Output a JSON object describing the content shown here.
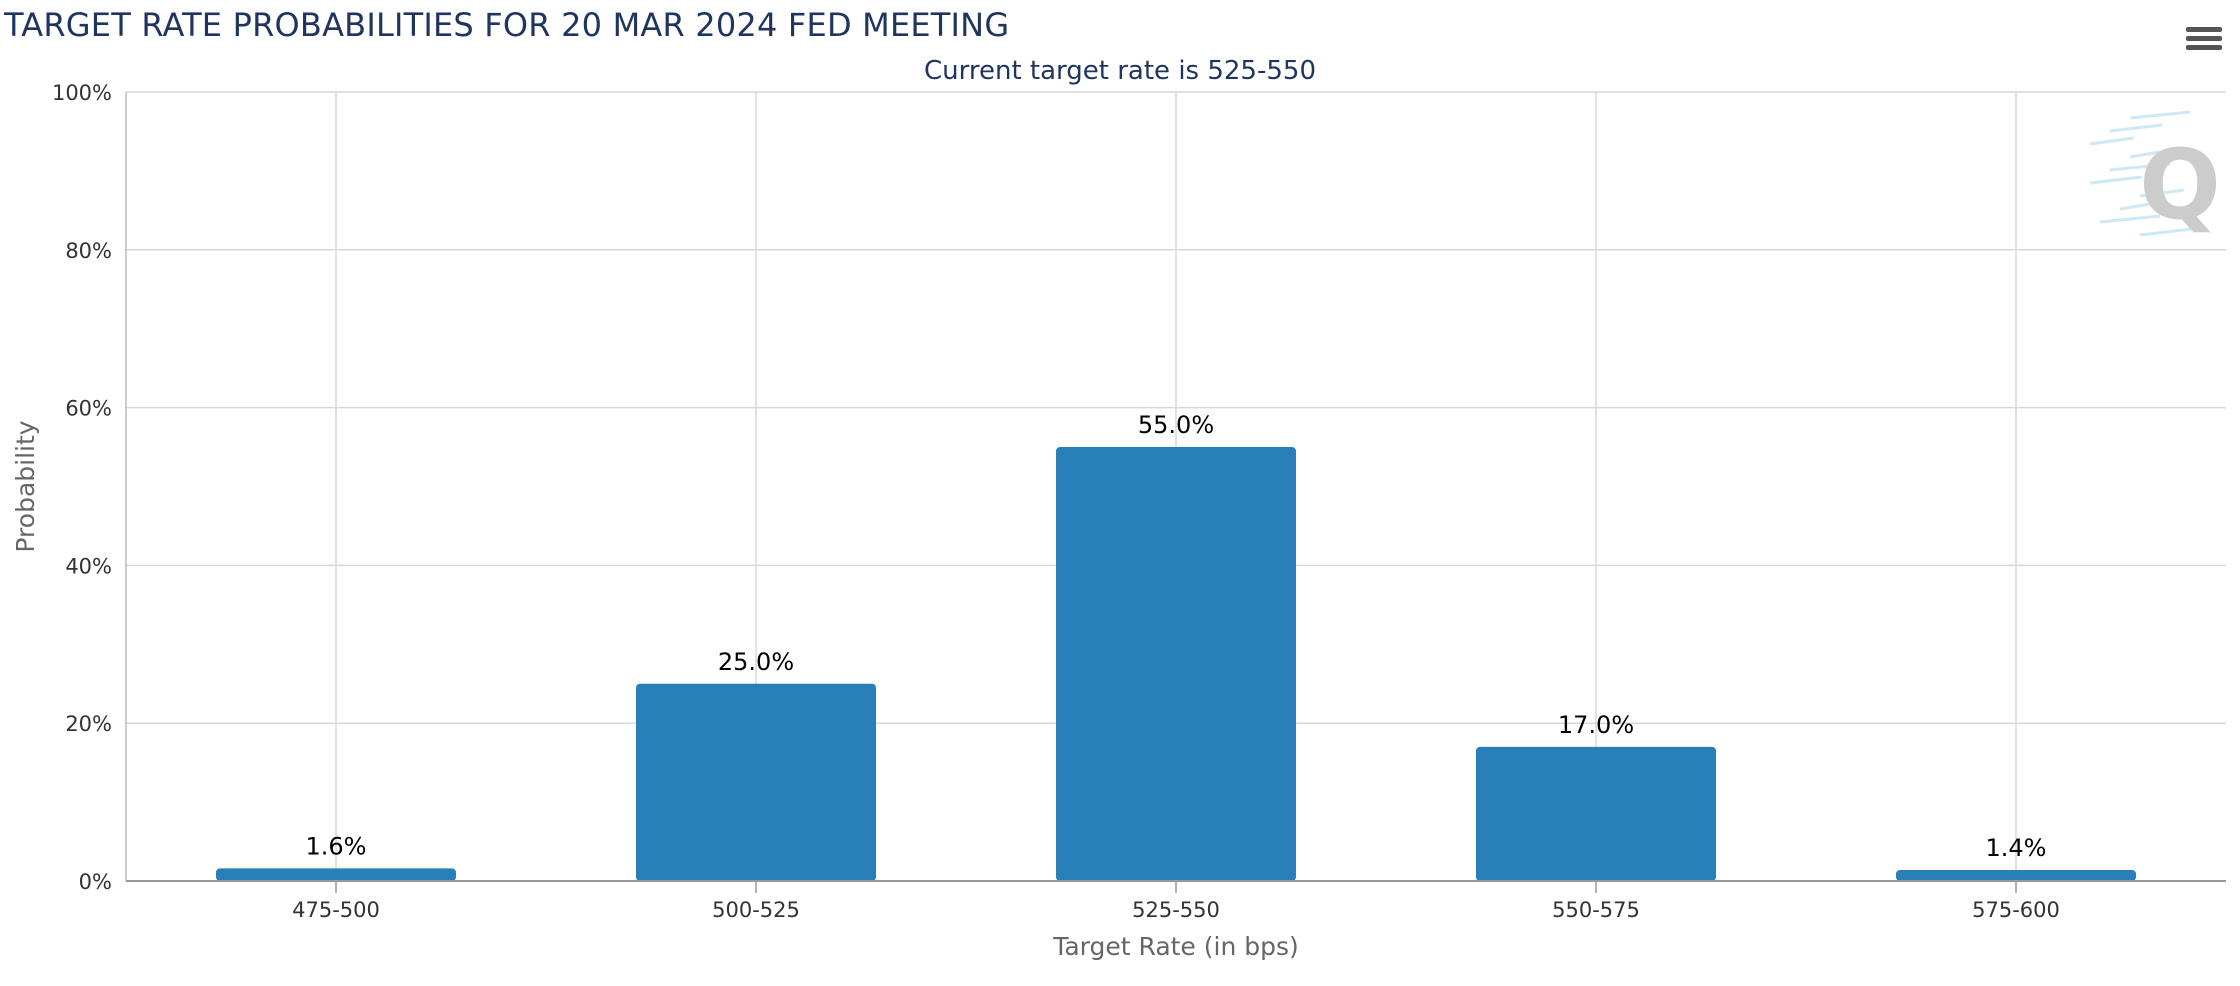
{
  "title": "TARGET RATE PROBABILITIES FOR 20 MAR 2024 FED MEETING",
  "subtitle": "Current target rate is 525-550",
  "menu": {
    "icon": "hamburger-menu-icon"
  },
  "watermark": {
    "icon": "q-logo-icon",
    "text": "Q"
  },
  "colors": {
    "bar": "#2980b9",
    "grid": "#d8d8d8",
    "title": "#1f3560",
    "axis_text": "#333333",
    "axis_title": "#666666"
  },
  "chart_data": {
    "type": "bar",
    "title": "TARGET RATE PROBABILITIES FOR 20 MAR 2024 FED MEETING",
    "subtitle": "Current target rate is 525-550",
    "xlabel": "Target Rate (in bps)",
    "ylabel": "Probability",
    "categories": [
      "475-500",
      "500-525",
      "525-550",
      "550-575",
      "575-600"
    ],
    "values": [
      1.6,
      25.0,
      55.0,
      17.0,
      1.4
    ],
    "data_labels": [
      "1.6%",
      "25.0%",
      "55.0%",
      "17.0%",
      "1.4%"
    ],
    "ylim": [
      0,
      100
    ],
    "y_ticks": [
      0,
      20,
      40,
      60,
      80,
      100
    ],
    "y_tick_labels": [
      "0%",
      "20%",
      "40%",
      "60%",
      "80%",
      "100%"
    ],
    "grid": true,
    "legend": "none"
  }
}
